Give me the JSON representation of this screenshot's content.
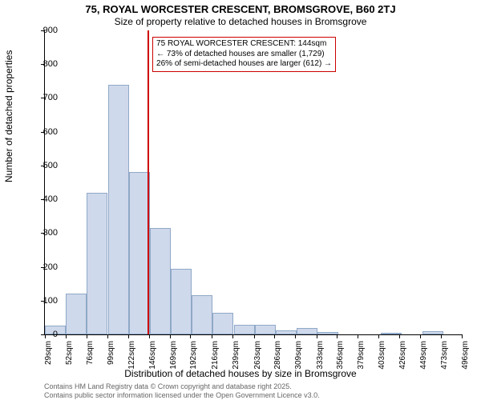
{
  "title_main": "75, ROYAL WORCESTER CRESCENT, BROMSGROVE, B60 2TJ",
  "title_sub": "Size of property relative to detached houses in Bromsgrove",
  "y_axis_label": "Number of detached properties",
  "x_axis_label": "Distribution of detached houses by size in Bromsgrove",
  "footer1": "Contains HM Land Registry data © Crown copyright and database right 2025.",
  "footer2": "Contains public sector information licensed under the Open Government Licence v3.0.",
  "annotation": {
    "line1": "75 ROYAL WORCESTER CRESCENT: 144sqm",
    "line2": "← 73% of detached houses are smaller (1,729)",
    "line3": "26% of semi-detached houses are larger (612) →",
    "border_color": "#cc0000"
  },
  "reference_line": {
    "x_value": 144,
    "color": "#cc0000"
  },
  "chart": {
    "type": "histogram",
    "background_color": "#ffffff",
    "bar_fill": "#cfd9ec",
    "bar_border": "#8fa8c7",
    "axis_color": "#000000",
    "ylim": [
      0,
      900
    ],
    "ytick_step": 100,
    "x_start": 29,
    "x_bin_width": 23.5,
    "x_ticks": [
      29,
      52,
      76,
      99,
      122,
      146,
      169,
      192,
      216,
      239,
      263,
      286,
      309,
      333,
      356,
      379,
      403,
      426,
      449,
      473,
      496
    ],
    "x_tick_suffix": "sqm",
    "bars": [
      25,
      120,
      420,
      740,
      480,
      315,
      195,
      115,
      65,
      28,
      28,
      12,
      20,
      8,
      0,
      0,
      2,
      0,
      10,
      0
    ]
  }
}
